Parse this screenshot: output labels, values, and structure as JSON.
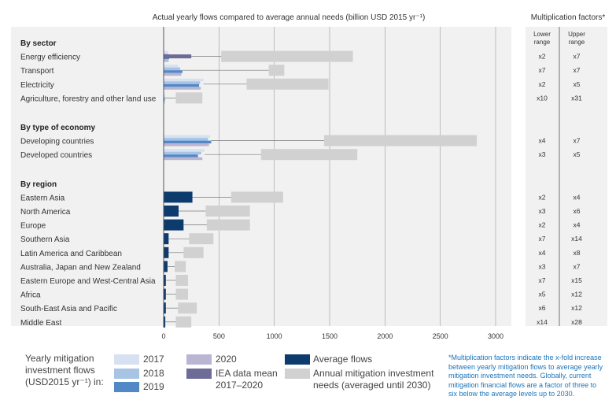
{
  "chart_data": {
    "type": "bar",
    "title": "Actual yearly flows compared to average annual needs (billion USD 2015 yr⁻¹)",
    "xlim": [
      0,
      3000
    ],
    "xticks": [
      "0",
      "500",
      "1000",
      "1500",
      "2000",
      "2500",
      "3000"
    ],
    "sections": [
      {
        "name": "By sector",
        "rows": [
          {
            "label": "Energy efficiency",
            "y2017": 40,
            "y2018": 45,
            "y2019": 50,
            "y2020": 45,
            "iea": 250,
            "avg": null,
            "need": [
              520,
              1710
            ],
            "lower": "x2",
            "upper": "x7"
          },
          {
            "label": "Transport",
            "y2017": 130,
            "y2018": 150,
            "y2019": 170,
            "y2020": 160,
            "iea": null,
            "avg": null,
            "need": [
              950,
              1090
            ],
            "lower": "x7",
            "upper": "x7"
          },
          {
            "label": "Electricity",
            "y2017": 360,
            "y2018": 330,
            "y2019": 320,
            "y2020": 335,
            "iea": null,
            "avg": null,
            "need": [
              750,
              1490
            ],
            "lower": "x2",
            "upper": "x5"
          },
          {
            "label": "Agriculture, forestry and other land use",
            "y2017": 10,
            "y2018": 10,
            "y2019": 10,
            "y2020": 10,
            "iea": null,
            "avg": null,
            "need": [
              110,
              350
            ],
            "lower": "x10",
            "upper": "x31"
          }
        ]
      },
      {
        "name": "By type of economy",
        "rows": [
          {
            "label": "Developing countries",
            "y2017": 420,
            "y2018": 400,
            "y2019": 430,
            "y2020": 410,
            "iea": null,
            "avg": null,
            "need": [
              1450,
              2830
            ],
            "lower": "x4",
            "upper": "x7"
          },
          {
            "label": "Developed countries",
            "y2017": 370,
            "y2018": 340,
            "y2019": 310,
            "y2020": 350,
            "iea": null,
            "avg": null,
            "need": [
              880,
              1750
            ],
            "lower": "x3",
            "upper": "x5"
          }
        ]
      },
      {
        "name": "By region",
        "rows": [
          {
            "label": "Eastern Asia",
            "y2017": null,
            "y2018": null,
            "y2019": null,
            "y2020": null,
            "iea": null,
            "avg": 260,
            "need": [
              610,
              1080
            ],
            "lower": "x2",
            "upper": "x4"
          },
          {
            "label": "North America",
            "y2017": null,
            "y2018": null,
            "y2019": null,
            "y2020": null,
            "iea": null,
            "avg": 135,
            "need": [
              380,
              780
            ],
            "lower": "x3",
            "upper": "x6"
          },
          {
            "label": "Europe",
            "y2017": null,
            "y2018": null,
            "y2019": null,
            "y2020": null,
            "iea": null,
            "avg": 180,
            "need": [
              390,
              780
            ],
            "lower": "x2",
            "upper": "x4"
          },
          {
            "label": "Southern Asia",
            "y2017": null,
            "y2018": null,
            "y2019": null,
            "y2020": null,
            "iea": null,
            "avg": 45,
            "need": [
              230,
              450
            ],
            "lower": "x7",
            "upper": "x14"
          },
          {
            "label": "Latin America and Caribbean",
            "y2017": null,
            "y2018": null,
            "y2019": null,
            "y2020": null,
            "iea": null,
            "avg": 45,
            "need": [
              180,
              360
            ],
            "lower": "x4",
            "upper": "x8"
          },
          {
            "label": "Australia, Japan and New Zealand",
            "y2017": null,
            "y2018": null,
            "y2019": null,
            "y2020": null,
            "iea": null,
            "avg": 35,
            "need": [
              100,
              200
            ],
            "lower": "x3",
            "upper": "x7"
          },
          {
            "label": "Eastern Europe and West-Central Asia",
            "y2017": null,
            "y2018": null,
            "y2019": null,
            "y2020": null,
            "iea": null,
            "avg": 20,
            "need": [
              110,
              220
            ],
            "lower": "x7",
            "upper": "x15"
          },
          {
            "label": "Africa",
            "y2017": null,
            "y2018": null,
            "y2019": null,
            "y2020": null,
            "iea": null,
            "avg": 20,
            "need": [
              110,
              220
            ],
            "lower": "x5",
            "upper": "x12"
          },
          {
            "label": "South-East Asia and Pacific",
            "y2017": null,
            "y2018": null,
            "y2019": null,
            "y2020": null,
            "iea": null,
            "avg": 20,
            "need": [
              130,
              300
            ],
            "lower": "x6",
            "upper": "x12"
          },
          {
            "label": "Middle East",
            "y2017": null,
            "y2018": null,
            "y2019": null,
            "y2020": null,
            "iea": null,
            "avg": 15,
            "need": [
              110,
              250
            ],
            "lower": "x14",
            "upper": "x28"
          }
        ]
      }
    ],
    "multiplication": {
      "title": "Multiplication factors*",
      "lower_header": "Lower range",
      "upper_header": "Upper range"
    },
    "legend": {
      "title": "Yearly mitigation investment flows (USD2015 yr⁻¹) in:",
      "y2017": "2017",
      "y2018": "2018",
      "y2019": "2019",
      "y2020": "2020",
      "iea": "IEA data mean 2017–2020",
      "avg": "Average flows",
      "need": "Annual mitigation investment needs (averaged until 2030)"
    },
    "footnote": "*Multiplication factors indicate the x-fold increase between yearly mitigation flows to average yearly mitigation investment needs. Globally, current mitigation financial flows are a factor of three to six below the average levels up to 2030.",
    "colors": {
      "panel": "#f1f1f1",
      "y2017": "#d7e1f1",
      "y2018": "#a8c4e5",
      "y2019": "#5388c6",
      "y2020": "#b9b5d2",
      "iea": "#6e6b96",
      "avg": "#0d3b6e",
      "need": "#d1d1d1",
      "note": "#1b75bb"
    }
  }
}
